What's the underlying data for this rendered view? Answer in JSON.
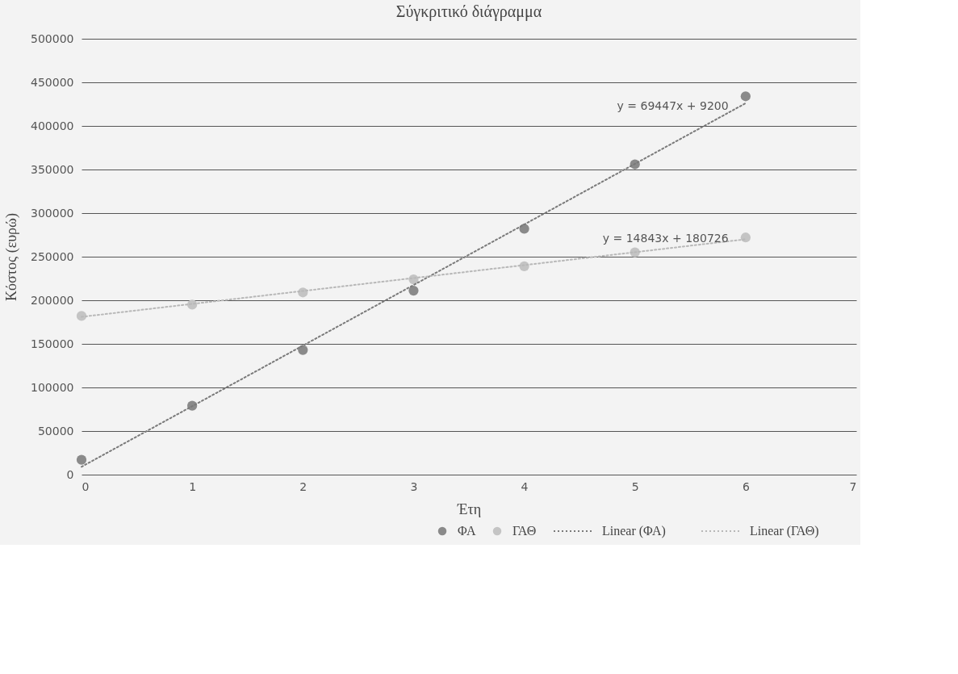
{
  "chart_data": {
    "type": "scatter",
    "title": "Σύγκριτικό διάγραμμα",
    "xlabel": "Έτη",
    "ylabel": "Κόστος (ευρώ)",
    "xlim": [
      0,
      7
    ],
    "xticks": [
      0,
      1,
      2,
      3,
      4,
      5,
      6,
      7
    ],
    "ylim": [
      0,
      500000
    ],
    "yticks": [
      0,
      50000,
      100000,
      150000,
      200000,
      250000,
      300000,
      350000,
      400000,
      450000,
      500000
    ],
    "grid": "y",
    "legend": "bottom",
    "marker": "circle",
    "series": [
      {
        "name": "ΦΑ",
        "color": "#8a8a8a",
        "x": [
          0,
          1,
          2,
          3,
          4,
          5,
          6
        ],
        "values": [
          17000,
          79000,
          143000,
          211000,
          282000,
          356000,
          434000
        ]
      },
      {
        "name": "ΓΑΘ",
        "color": "#c4c4c4",
        "x": [
          0,
          1,
          2,
          3,
          4,
          5,
          6
        ],
        "values": [
          182000,
          195000,
          209000,
          224000,
          239000,
          255000,
          272000
        ]
      },
      {
        "name": "Linear (ΦΑ)",
        "type": "line",
        "marker": "none",
        "line_style": "dotted",
        "color": "#7a7a7a",
        "x": [
          0,
          6
        ],
        "values": [
          9000,
          426000
        ]
      },
      {
        "name": "Linear (ΓΑΘ)",
        "type": "line",
        "marker": "none",
        "line_style": "dotted",
        "color": "#b8b8b8",
        "x": [
          0,
          6
        ],
        "values": [
          181000,
          270000
        ]
      }
    ],
    "annotations": [
      "y = 69447x + 9200",
      "y = 14843x + 180726"
    ]
  }
}
